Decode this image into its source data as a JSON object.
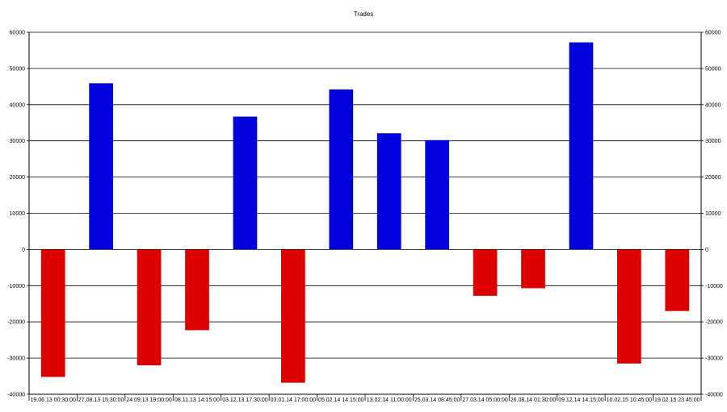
{
  "chart_data": {
    "type": "bar",
    "title": "Trades",
    "xlabel": "",
    "ylabel": "",
    "categories": [
      "19.06.13 00:30:00",
      "27.08.13 15:30:00",
      "24.09.13 19:00:00",
      "08.11.13 14:15:00",
      "03.12.13 17:30:00",
      "03.01.14 17:00:00",
      "05.02.14 14:15:00",
      "13.02.14 11:00:00",
      "25.03.14 08:45:00",
      "27.03.14 05:00:00",
      "26.08.14 01:30:00",
      "09.12.14 14:15:00",
      "10.02.15 10:45:00",
      "19.02.15 23:45:00"
    ],
    "values": [
      -35200,
      45900,
      -32000,
      -22300,
      36700,
      -36800,
      44200,
      32100,
      30200,
      -12800,
      -10700,
      57200,
      -31500,
      -17000
    ],
    "ylim": [
      -40000,
      60000
    ],
    "yticks": [
      "60000",
      "50000",
      "40000",
      "30000",
      "20000",
      "10000",
      "0",
      "-10000",
      "-20000",
      "-30000",
      "-40000"
    ],
    "grid": true,
    "legend": "none",
    "right_axis": true,
    "colors": {
      "positive": "#0000dd",
      "negative": "#dd0000",
      "grid": "#000000"
    }
  }
}
